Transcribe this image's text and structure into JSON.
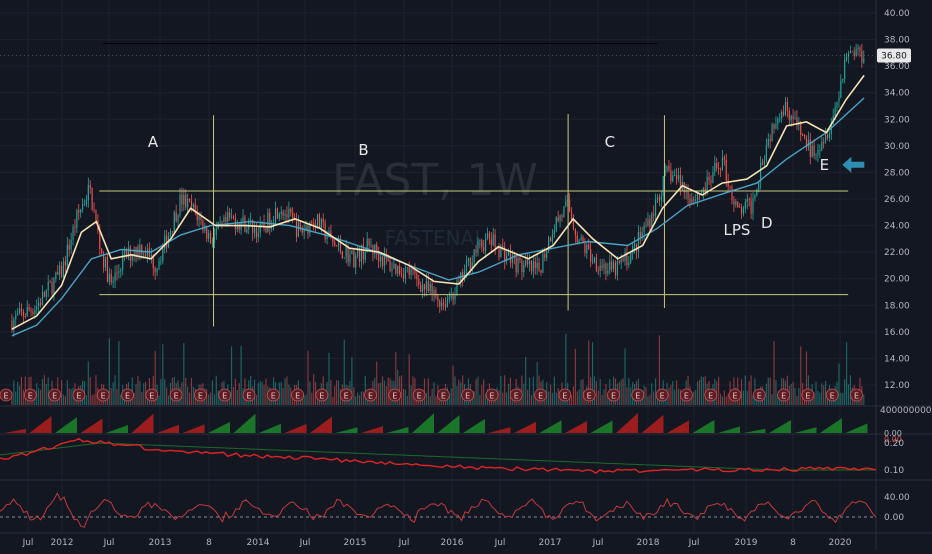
{
  "watermark": {
    "symbol": "FAST, 1W",
    "name": "FASTENAL"
  },
  "chart_data": {
    "type": "candlestick",
    "title": "",
    "price_axis": {
      "ticks": [
        12,
        14,
        16,
        18,
        20,
        22,
        24,
        26,
        28,
        30,
        32,
        34,
        36,
        38,
        40
      ],
      "range": [
        11.5,
        41
      ],
      "format": "2dp"
    },
    "last_price": "36.80",
    "x_axis_labels": [
      "Jul",
      "2012",
      "Jul",
      "2013",
      "8",
      "2014",
      "Jul",
      "2015",
      "Jul",
      "2016",
      "Jul",
      "2017",
      "Jul",
      "2018",
      "Jul",
      "2019",
      "8",
      "2020"
    ],
    "price_path": [
      [
        "2011.50",
        16.8
      ],
      [
        "2011.75",
        18.0
      ],
      [
        "2012.00",
        20.5
      ],
      [
        "2012.15",
        24.5
      ],
      [
        "2012.28",
        26.8
      ],
      [
        "2012.40",
        22.0
      ],
      [
        "2012.50",
        19.5
      ],
      [
        "2012.62",
        21.5
      ],
      [
        "2012.80",
        22.5
      ],
      [
        "2012.95",
        21.0
      ],
      [
        "2013.05",
        22.8
      ],
      [
        "2013.20",
        26.0
      ],
      [
        "2013.35",
        25.0
      ],
      [
        "2013.50",
        23.0
      ],
      [
        "2013.70",
        24.5
      ],
      [
        "2013.90",
        24.0
      ],
      [
        "2014.00",
        23.5
      ],
      [
        "2014.20",
        25.5
      ],
      [
        "2014.40",
        23.5
      ],
      [
        "2014.55",
        24.5
      ],
      [
        "2014.75",
        22.5
      ],
      [
        "2014.95",
        21.5
      ],
      [
        "2015.10",
        22.5
      ],
      [
        "2015.30",
        21.0
      ],
      [
        "2015.50",
        20.5
      ],
      [
        "2015.70",
        19.0
      ],
      [
        "2015.85",
        18.2
      ],
      [
        "2016.00",
        19.5
      ],
      [
        "2016.15",
        22.0
      ],
      [
        "2016.30",
        23.0
      ],
      [
        "2016.45",
        22.0
      ],
      [
        "2016.60",
        21.0
      ],
      [
        "2016.80",
        20.5
      ],
      [
        "2016.95",
        24.0
      ],
      [
        "2017.10",
        25.5
      ],
      [
        "2017.20",
        23.0
      ],
      [
        "2017.35",
        21.5
      ],
      [
        "2017.55",
        20.5
      ],
      [
        "2017.75",
        22.0
      ],
      [
        "2017.95",
        25.0
      ],
      [
        "2018.10",
        28.0
      ],
      [
        "2018.20",
        27.5
      ],
      [
        "2018.35",
        26.0
      ],
      [
        "2018.50",
        27.0
      ],
      [
        "2018.65",
        29.0
      ],
      [
        "2018.80",
        25.0
      ],
      [
        "2018.95",
        25.5
      ],
      [
        "2019.05",
        29.0
      ],
      [
        "2019.20",
        32.5
      ],
      [
        "2019.30",
        33.0
      ],
      [
        "2019.40",
        31.5
      ],
      [
        "2019.55",
        29.5
      ],
      [
        "2019.70",
        31.0
      ],
      [
        "2019.80",
        33.0
      ],
      [
        "2019.90",
        37.0
      ],
      [
        "2020.00",
        37.2
      ],
      [
        "2020.08",
        36.8
      ]
    ],
    "ma_fast_path": [
      [
        "2011.50",
        16.2
      ],
      [
        "2011.75",
        17.2
      ],
      [
        "2012.00",
        19.5
      ],
      [
        "2012.20",
        23.5
      ],
      [
        "2012.35",
        24.3
      ],
      [
        "2012.50",
        21.5
      ],
      [
        "2012.70",
        21.8
      ],
      [
        "2012.90",
        21.5
      ],
      [
        "2013.10",
        23.0
      ],
      [
        "2013.30",
        25.3
      ],
      [
        "2013.55",
        24.0
      ],
      [
        "2013.85",
        24.0
      ],
      [
        "2014.10",
        23.9
      ],
      [
        "2014.35",
        24.5
      ],
      [
        "2014.60",
        23.8
      ],
      [
        "2014.90",
        22.3
      ],
      [
        "2015.20",
        22.0
      ],
      [
        "2015.50",
        21.0
      ],
      [
        "2015.75",
        19.8
      ],
      [
        "2016.00",
        19.6
      ],
      [
        "2016.20",
        21.3
      ],
      [
        "2016.40",
        22.4
      ],
      [
        "2016.70",
        21.5
      ],
      [
        "2016.95",
        22.5
      ],
      [
        "2017.15",
        24.5
      ],
      [
        "2017.35",
        23.0
      ],
      [
        "2017.60",
        21.5
      ],
      [
        "2017.85",
        22.5
      ],
      [
        "2018.05",
        25.3
      ],
      [
        "2018.25",
        27.0
      ],
      [
        "2018.45",
        26.3
      ],
      [
        "2018.65",
        27.2
      ],
      [
        "2018.90",
        27.5
      ],
      [
        "2019.10",
        28.5
      ],
      [
        "2019.30",
        31.5
      ],
      [
        "2019.50",
        31.8
      ],
      [
        "2019.70",
        31.0
      ],
      [
        "2019.90",
        33.5
      ],
      [
        "2020.08",
        35.3
      ]
    ],
    "ma_slow_path": [
      [
        "2011.50",
        15.7
      ],
      [
        "2011.75",
        16.5
      ],
      [
        "2012.00",
        18.5
      ],
      [
        "2012.30",
        21.5
      ],
      [
        "2012.60",
        22.2
      ],
      [
        "2012.90",
        22.0
      ],
      [
        "2013.20",
        23.3
      ],
      [
        "2013.50",
        24.0
      ],
      [
        "2013.90",
        24.3
      ],
      [
        "2014.30",
        24.0
      ],
      [
        "2014.70",
        23.2
      ],
      [
        "2015.10",
        22.2
      ],
      [
        "2015.50",
        21.0
      ],
      [
        "2015.90",
        19.9
      ],
      [
        "2016.20",
        20.5
      ],
      [
        "2016.60",
        21.8
      ],
      [
        "2016.95",
        22.3
      ],
      [
        "2017.30",
        22.8
      ],
      [
        "2017.70",
        22.5
      ],
      [
        "2018.00",
        23.8
      ],
      [
        "2018.30",
        25.5
      ],
      [
        "2018.70",
        26.5
      ],
      [
        "2019.00",
        27.2
      ],
      [
        "2019.30",
        29.0
      ],
      [
        "2019.70",
        31.0
      ],
      [
        "2020.08",
        33.6
      ]
    ],
    "annotations": [
      {
        "label": "A",
        "x": "2012.92",
        "y": 29.9
      },
      {
        "label": "B",
        "x": "2015.04",
        "y": 29.3
      },
      {
        "label": "C",
        "x": "2017.52",
        "y": 29.9
      },
      {
        "label": "LPS",
        "x": "2018.80",
        "y": 23.3
      },
      {
        "label": "D",
        "x": "2019.10",
        "y": 23.8
      },
      {
        "label": "E",
        "x": "2019.68",
        "y": 28.2
      }
    ],
    "trading_range": {
      "top": 26.6,
      "bottom": 18.8,
      "from": "2012.38",
      "to": "2019.92",
      "dividers": [
        {
          "x": "2013.53",
          "from": 16.4,
          "to": 32.3
        },
        {
          "x": "2017.10",
          "from": 17.6,
          "to": 32.4
        },
        {
          "x": "2018.07",
          "from": 17.8,
          "to": 32.3
        }
      ],
      "reference_line": {
        "y": 37.7,
        "from": "2012.42",
        "to": "2018.00"
      }
    },
    "volume_axis_label": "400000000.00",
    "indicator_1": {
      "ticks": [
        "0.20",
        "0.10"
      ],
      "extra_labels": [
        "0.00",
        "0.00"
      ]
    },
    "indicator_2": {
      "ticks": [
        "40.00",
        "0.00"
      ]
    },
    "earnings_marker": "E",
    "colors": {
      "up": "#26a69a",
      "down": "#ef5350",
      "ma_fast": "#f5e3b3",
      "ma_slow": "#4aa3c4",
      "range_lines": "#c8c87a",
      "arrow": "#2f8fb0",
      "indicator_line": "#e02424"
    }
  }
}
